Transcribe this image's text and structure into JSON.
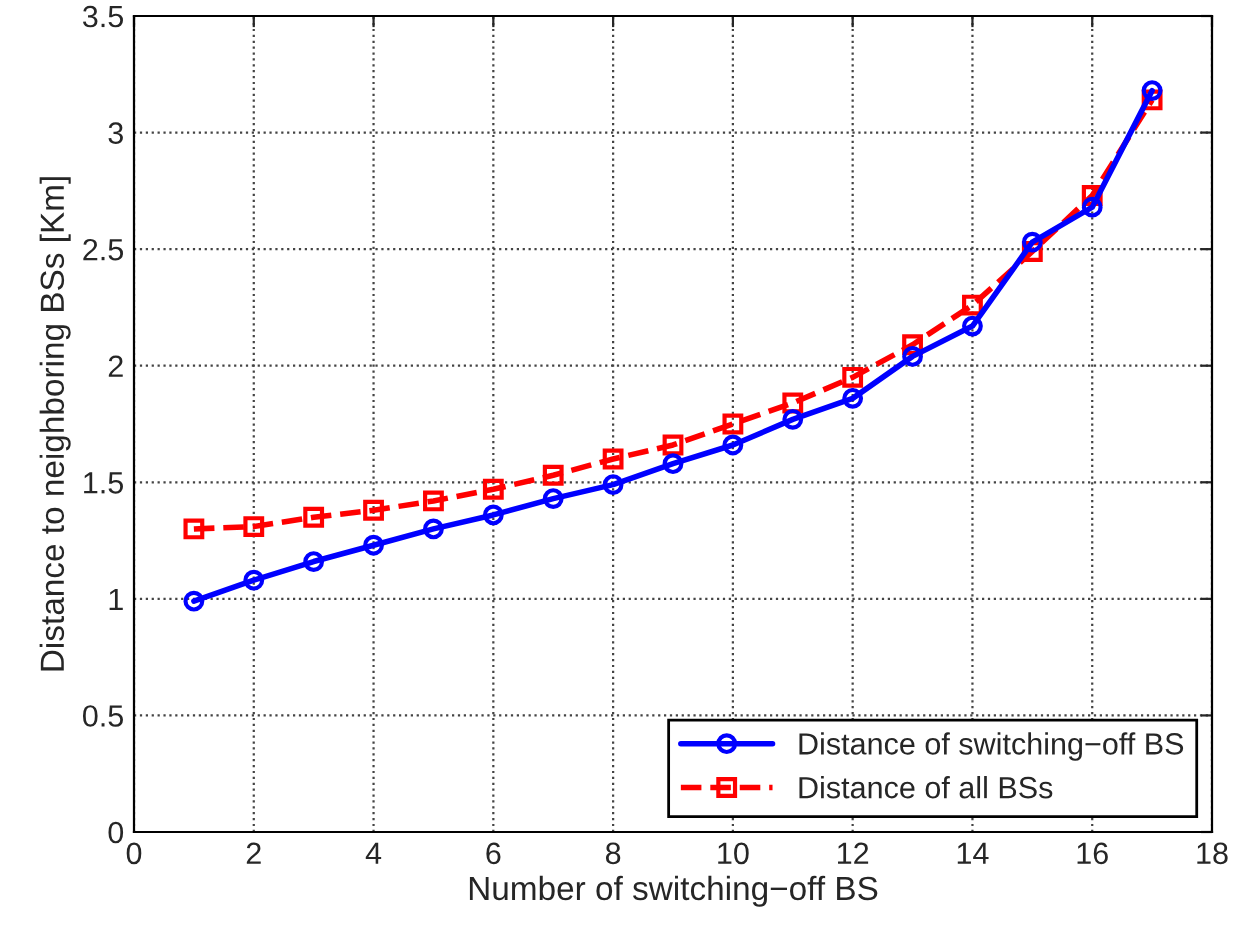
{
  "chart_data": {
    "type": "line",
    "xlabel": "Number of switching−off BS",
    "ylabel": "Distance to neighboring BSs [Km]",
    "x": [
      1,
      2,
      3,
      4,
      5,
      6,
      7,
      8,
      9,
      10,
      11,
      12,
      13,
      14,
      15,
      16,
      17
    ],
    "series": [
      {
        "name": "Distance of switching−off BS",
        "color": "#0000ff",
        "marker": "circle",
        "line_style": "solid",
        "values": [
          0.99,
          1.08,
          1.16,
          1.23,
          1.3,
          1.36,
          1.43,
          1.49,
          1.58,
          1.66,
          1.77,
          1.86,
          2.04,
          2.17,
          2.53,
          2.68,
          3.18
        ]
      },
      {
        "name": "Distance of all BSs",
        "color": "#ff0000",
        "marker": "square",
        "line_style": "dashed",
        "values": [
          1.3,
          1.31,
          1.35,
          1.38,
          1.42,
          1.47,
          1.53,
          1.6,
          1.66,
          1.75,
          1.84,
          1.95,
          2.09,
          2.26,
          2.49,
          2.73,
          3.14
        ]
      }
    ],
    "xlim": [
      0,
      18
    ],
    "xticks": [
      0,
      2,
      4,
      6,
      8,
      10,
      12,
      14,
      16,
      18
    ],
    "ylim": [
      0,
      3.5
    ],
    "yticks": [
      0,
      0.5,
      1,
      1.5,
      2,
      2.5,
      3,
      3.5
    ],
    "grid": true,
    "legend": "bottom right"
  }
}
